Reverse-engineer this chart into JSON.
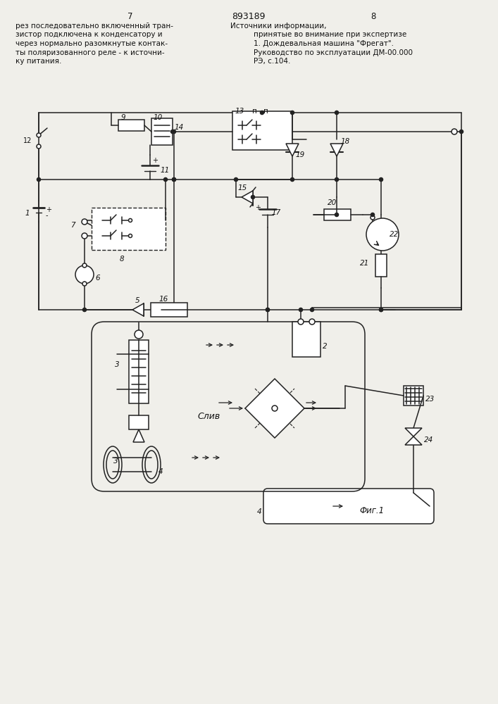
{
  "page_number_left": "7",
  "page_number_right": "8",
  "patent_number": "893189",
  "left_text_lines": [
    "рез последовательно включенный тран-",
    "зистор подключена к конденсатору и",
    "через нормально разомкнутые контак-",
    "ты поляризованного реле - к источни-",
    "ку питания."
  ],
  "right_title": "Источники информации,",
  "right_text1": "принятые во внимание при экспертизе",
  "right_text2": "1. Дождевальная машина \"Фрегат\".",
  "right_text3": "Руководство по эксплуатации ДМ-00.000",
  "right_text4": "РЭ, с.104.",
  "fig_label": "Фиг.1",
  "background_color": "#f0efea",
  "line_color": "#222222",
  "text_color": "#111111"
}
